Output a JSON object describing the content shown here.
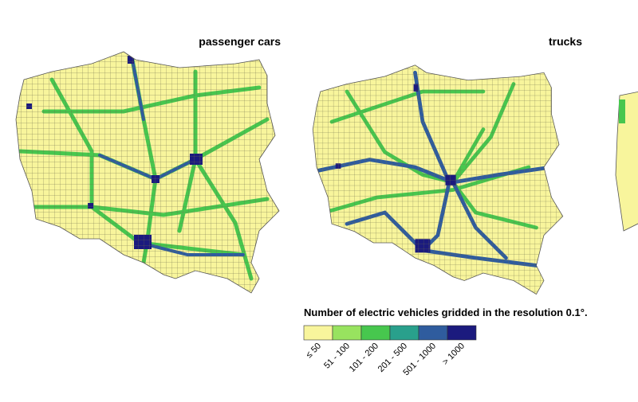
{
  "maps": [
    {
      "title": "passenger cars"
    },
    {
      "title": "trucks"
    }
  ],
  "legend": {
    "title": "Number of electric vehicles gridded in the resolution 0.1°.",
    "items": [
      {
        "label": "≤ 50",
        "color": "#f8f59c"
      },
      {
        "label": "51 - 100",
        "color": "#98e35f"
      },
      {
        "label": "101 - 200",
        "color": "#47c74e"
      },
      {
        "label": "201 - 500",
        "color": "#29a08c"
      },
      {
        "label": "501 - 1000",
        "color": "#2f5c9e"
      },
      {
        "label": "> 1000",
        "color": "#1b1a7e"
      }
    ]
  }
}
